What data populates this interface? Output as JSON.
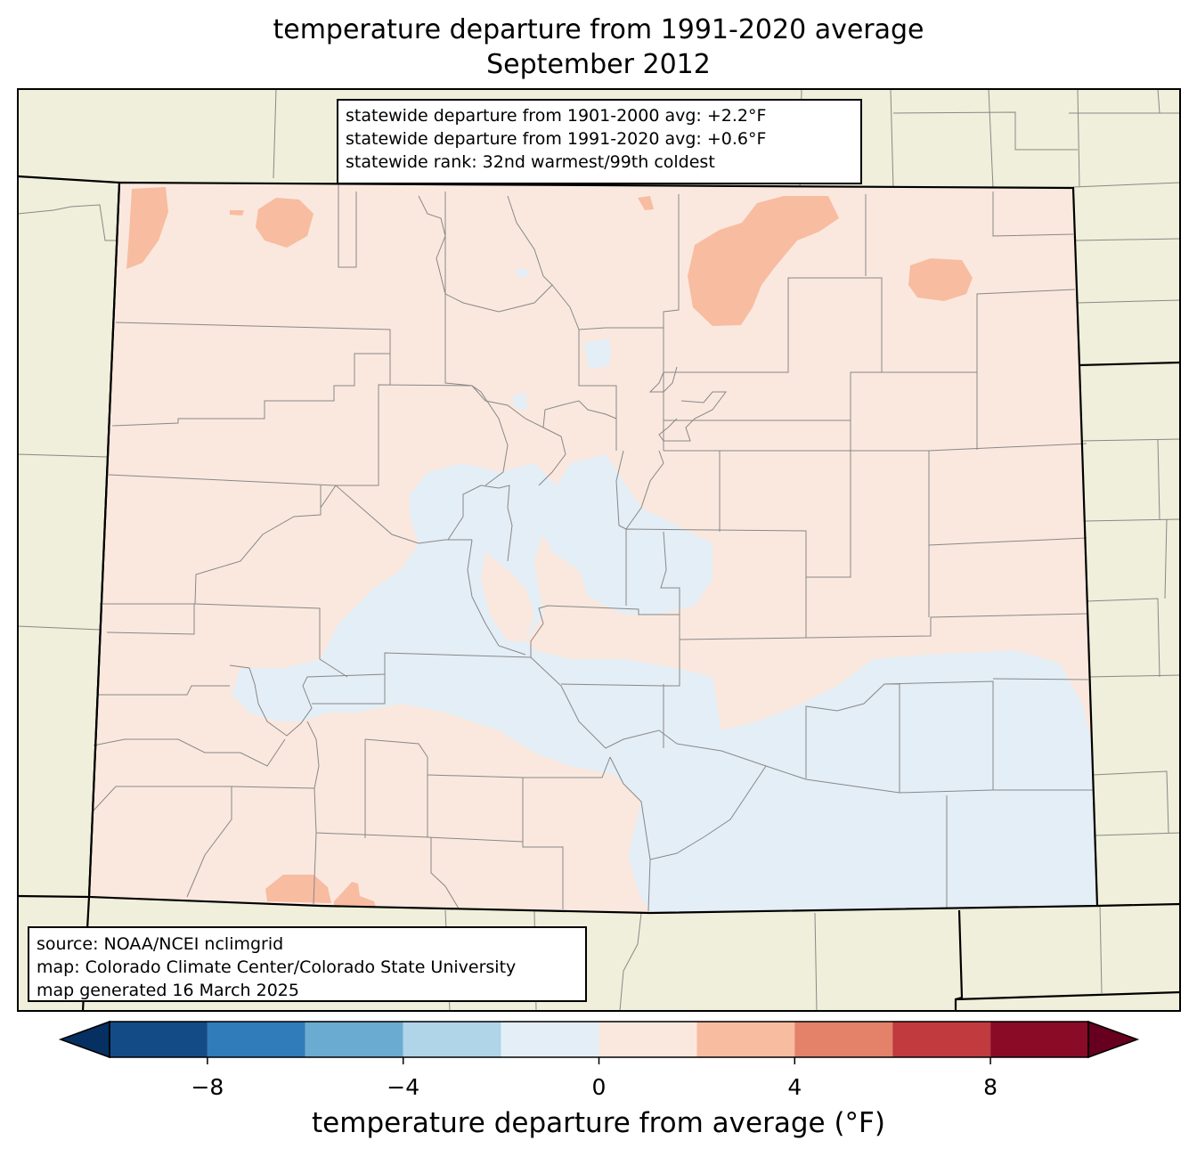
{
  "title": {
    "line1": "temperature departure from 1991-2020 average",
    "line2": "September 2012"
  },
  "stats": [
    "statewide departure from 1901-2000 avg: +2.2°F",
    "statewide departure from 1991-2020 avg: +0.6°F",
    "statewide rank: 32nd warmest/99th coldest"
  ],
  "source": [
    "source: NOAA/NCEI nclimgrid",
    "map: Colorado Climate Center/Colorado State University",
    "map generated 16 March 2025"
  ],
  "colorbar": {
    "label": "temperature departure from average (°F)",
    "ticks": [
      {
        "value": -8,
        "label": "−8"
      },
      {
        "value": -4,
        "label": "−4"
      },
      {
        "value": 0,
        "label": "0"
      },
      {
        "value": 4,
        "label": "4"
      },
      {
        "value": 8,
        "label": "8"
      }
    ],
    "range": [
      -10,
      10
    ],
    "extend": "both",
    "bins": [
      {
        "from": -10,
        "to": -8,
        "color": "#134b87"
      },
      {
        "from": -8,
        "to": -6,
        "color": "#307cba"
      },
      {
        "from": -6,
        "to": -4,
        "color": "#6aabd1"
      },
      {
        "from": -4,
        "to": -2,
        "color": "#b0d4e8"
      },
      {
        "from": -2,
        "to": 0,
        "color": "#e4eef6"
      },
      {
        "from": 0,
        "to": 2,
        "color": "#fae8de"
      },
      {
        "from": 2,
        "to": 4,
        "color": "#f8bca1"
      },
      {
        "from": 4,
        "to": 6,
        "color": "#e38169"
      },
      {
        "from": 6,
        "to": 8,
        "color": "#c03a3e"
      },
      {
        "from": 8,
        "to": 10,
        "color": "#8a0b25"
      }
    ],
    "under_color": "#053061",
    "over_color": "#67001f"
  },
  "colors": {
    "land_outside": "#efefdb",
    "county_lines": "#888888",
    "state_lines": "#000000"
  }
}
